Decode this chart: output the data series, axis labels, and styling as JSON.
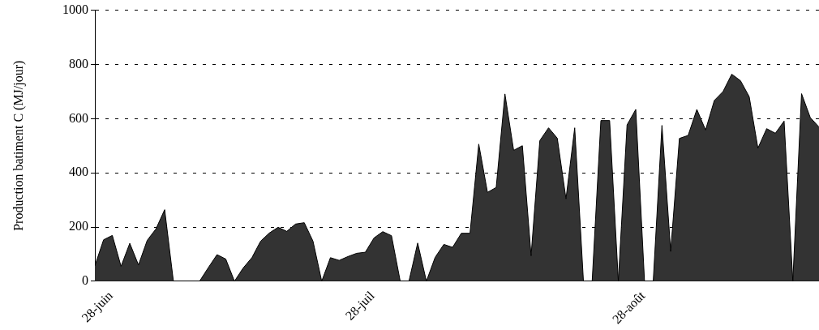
{
  "chart_data": {
    "type": "area",
    "ylabel": "Production batiment C (MJ/jour)",
    "x": [
      "--06-28",
      "--06-29",
      "--06-30",
      "--07-01",
      "--07-02",
      "--07-03",
      "--07-04",
      "--07-05",
      "--07-06",
      "--07-07",
      "--07-08",
      "--07-09",
      "--07-10",
      "--07-11",
      "--07-12",
      "--07-13",
      "--07-14",
      "--07-15",
      "--07-16",
      "--07-17",
      "--07-18",
      "--07-19",
      "--07-20",
      "--07-21",
      "--07-22",
      "--07-23",
      "--07-24",
      "--07-25",
      "--07-26",
      "--07-27",
      "--07-28",
      "--07-29",
      "--07-30",
      "--07-31",
      "--08-01",
      "--08-02",
      "--08-03",
      "--08-04",
      "--08-05",
      "--08-06",
      "--08-07",
      "--08-08",
      "--08-09",
      "--08-10",
      "--08-11",
      "--08-12",
      "--08-13",
      "--08-14",
      "--08-15",
      "--08-16",
      "--08-17",
      "--08-18",
      "--08-19",
      "--08-20",
      "--08-21",
      "--08-22",
      "--08-23",
      "--08-24",
      "--08-25",
      "--08-26",
      "--08-27",
      "--08-28",
      "--08-29",
      "--08-30",
      "--08-31",
      "--09-01",
      "--09-02",
      "--09-03",
      "--09-04",
      "--09-05",
      "--09-06",
      "--09-07",
      "--09-08",
      "--09-09",
      "--09-10",
      "--09-11",
      "--09-12",
      "--09-13",
      "--09-14",
      "--09-15",
      "--09-16",
      "--09-17",
      "--09-18",
      "--09-19"
    ],
    "series": [
      {
        "color": "#333333",
        "values": [
          57,
          153,
          169,
          55,
          140,
          60,
          151,
          193,
          264,
          0,
          0,
          0,
          0,
          50,
          98,
          82,
          0,
          49,
          87,
          148,
          178,
          199,
          184,
          211,
          216,
          148,
          0,
          87,
          77,
          91,
          103,
          107,
          160,
          183,
          168,
          0,
          0,
          141,
          0,
          88,
          136,
          125,
          177,
          177,
          506,
          328,
          346,
          691,
          483,
          500,
          94,
          519,
          566,
          528,
          304,
          566,
          0,
          0,
          593,
          593,
          0,
          577,
          634,
          0,
          0,
          575,
          110,
          527,
          538,
          634,
          558,
          667,
          700,
          764,
          740,
          681,
          491,
          563,
          546,
          591,
          0,
          692,
          604,
          569
        ]
      }
    ],
    "xlim": [
      "--06-28",
      "--09-19"
    ],
    "xticks": [
      {
        "value": "--06-28",
        "label": "28-juin"
      },
      {
        "value": "--07-28",
        "label": "28-juil"
      },
      {
        "value": "--08-28",
        "label": "28-août"
      }
    ],
    "ylim": [
      0,
      1000
    ],
    "yticks": [
      0,
      200,
      400,
      600,
      800,
      1000
    ],
    "grid": "y"
  }
}
